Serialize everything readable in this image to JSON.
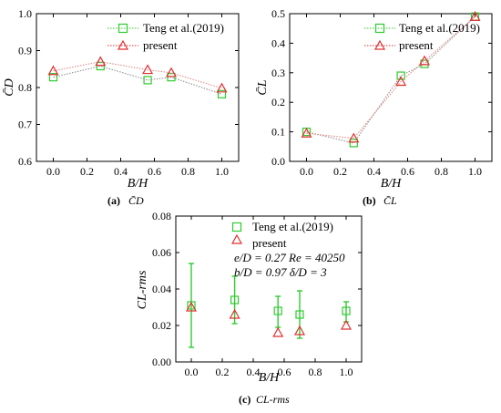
{
  "chart_data": [
    {
      "id": "a",
      "type": "line",
      "ylabel": "C̄D",
      "xlabel": "B/H",
      "caption_letter": "(a)",
      "caption_symbol": "C̄D",
      "xlim": [
        -0.1,
        1.1
      ],
      "ylim": [
        0.6,
        1.0
      ],
      "x_ticks": [
        0.0,
        0.2,
        0.4,
        0.6,
        0.8,
        1.0
      ],
      "x_tick_labels": [
        "0.0",
        "0.2",
        "0.4",
        "0.6",
        "0.8",
        "1.0"
      ],
      "y_ticks": [
        0.6,
        0.7,
        0.8,
        0.9,
        1.0
      ],
      "y_tick_labels": [
        "0.6",
        "0.7",
        "0.8",
        "0.9",
        "1.0"
      ],
      "legend_position": "top-right",
      "series": [
        {
          "name": "Teng et al.(2019)",
          "marker": "square",
          "color": "#2ecc2e",
          "line": "dotted",
          "x": [
            0.0,
            0.28,
            0.56,
            0.7,
            1.0
          ],
          "y": [
            0.828,
            0.858,
            0.82,
            0.828,
            0.782
          ]
        },
        {
          "name": "present",
          "marker": "triangle",
          "color": "#e03030",
          "line": "dotted",
          "x": [
            0.0,
            0.28,
            0.56,
            0.7,
            1.0
          ],
          "y": [
            0.845,
            0.87,
            0.848,
            0.84,
            0.798
          ]
        }
      ]
    },
    {
      "id": "b",
      "type": "line",
      "ylabel": "C̄L",
      "xlabel": "B/H",
      "caption_letter": "(b)",
      "caption_symbol": "C̄L",
      "xlim": [
        -0.1,
        1.1
      ],
      "ylim": [
        0.0,
        0.5
      ],
      "x_ticks": [
        0.0,
        0.2,
        0.4,
        0.6,
        0.8,
        1.0
      ],
      "x_tick_labels": [
        "0.0",
        "0.2",
        "0.4",
        "0.6",
        "0.8",
        "1.0"
      ],
      "y_ticks": [
        0.0,
        0.1,
        0.2,
        0.3,
        0.4,
        0.5
      ],
      "y_tick_labels": [
        "0.0",
        "0.1",
        "0.2",
        "0.3",
        "0.4",
        "0.5"
      ],
      "legend_position": "top-right",
      "series": [
        {
          "name": "Teng et al.(2019)",
          "marker": "square",
          "color": "#2ecc2e",
          "line": "dotted",
          "x": [
            0.0,
            0.28,
            0.56,
            0.7,
            1.0
          ],
          "y": [
            0.1,
            0.062,
            0.29,
            0.33,
            0.49
          ]
        },
        {
          "name": "present",
          "marker": "triangle",
          "color": "#e03030",
          "line": "dotted",
          "x": [
            0.0,
            0.28,
            0.56,
            0.7,
            1.0
          ],
          "y": [
            0.095,
            0.078,
            0.27,
            0.34,
            0.49
          ]
        }
      ]
    },
    {
      "id": "c",
      "type": "scatter",
      "ylabel": "CL-rms",
      "xlabel": "B/H",
      "caption_letter": "(c)",
      "caption_symbol": "CL-rms",
      "xlim": [
        -0.1,
        1.1
      ],
      "ylim": [
        0.0,
        0.08
      ],
      "x_ticks": [
        0.0,
        0.2,
        0.4,
        0.6,
        0.8,
        1.0
      ],
      "x_tick_labels": [
        "0.0",
        "0.2",
        "0.4",
        "0.6",
        "0.8",
        "1.0"
      ],
      "y_ticks": [
        0.0,
        0.02,
        0.04,
        0.06,
        0.08
      ],
      "y_tick_labels": [
        "0.00",
        "0.02",
        "0.04",
        "0.06",
        "0.08"
      ],
      "legend_position": "top-right",
      "annotations": [
        "e/D = 0.27  Re = 40250",
        "b/D = 0.97  δ/D = 3"
      ],
      "series": [
        {
          "name": "Teng et al.(2019)",
          "marker": "square",
          "color": "#2ecc2e",
          "x": [
            0.0,
            0.28,
            0.56,
            0.7,
            1.0
          ],
          "y": [
            0.031,
            0.034,
            0.028,
            0.026,
            0.028
          ],
          "err_low": [
            0.008,
            0.021,
            0.019,
            0.013,
            0.022
          ],
          "err_high": [
            0.054,
            0.047,
            0.036,
            0.039,
            0.033
          ]
        },
        {
          "name": "present",
          "marker": "triangle",
          "color": "#e03030",
          "x": [
            0.0,
            0.28,
            0.56,
            0.7,
            1.0
          ],
          "y": [
            0.03,
            0.026,
            0.016,
            0.017,
            0.02
          ]
        }
      ]
    }
  ]
}
